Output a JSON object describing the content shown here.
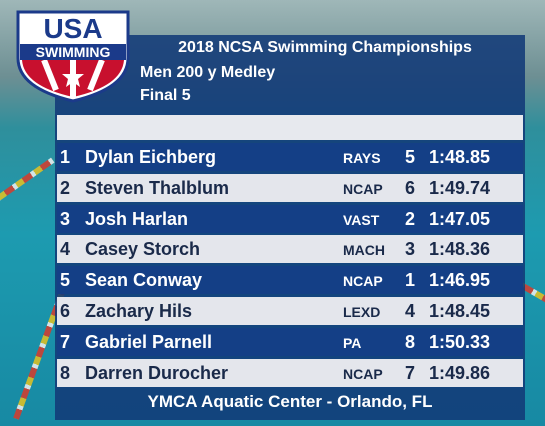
{
  "logo": {
    "top": "USA",
    "bottom": "SWIMMING"
  },
  "header": {
    "title": "2018 NCSA Swimming Championships",
    "event": "Men 200 y Medley",
    "round": "Final 5"
  },
  "rows": [
    [
      1,
      "Dylan Eichberg",
      "RAYS",
      5,
      "1:48.85"
    ],
    [
      2,
      "Steven Thalblum",
      "NCAP",
      6,
      "1:49.74"
    ],
    [
      3,
      "Josh Harlan",
      "VAST",
      2,
      "1:47.05"
    ],
    [
      4,
      "Casey Storch",
      "MACH",
      3,
      "1:48.36"
    ],
    [
      5,
      "Sean Conway",
      "NCAP",
      1,
      "1:46.95"
    ],
    [
      6,
      "Zachary Hils",
      "LEXD",
      4,
      "1:48.45"
    ],
    [
      7,
      "Gabriel Parnell",
      "PA",
      8,
      "1:50.33"
    ],
    [
      8,
      "Darren Durocher",
      "NCAP",
      7,
      "1:49.86"
    ]
  ],
  "footer": "YMCA Aquatic Center - Orlando, FL"
}
